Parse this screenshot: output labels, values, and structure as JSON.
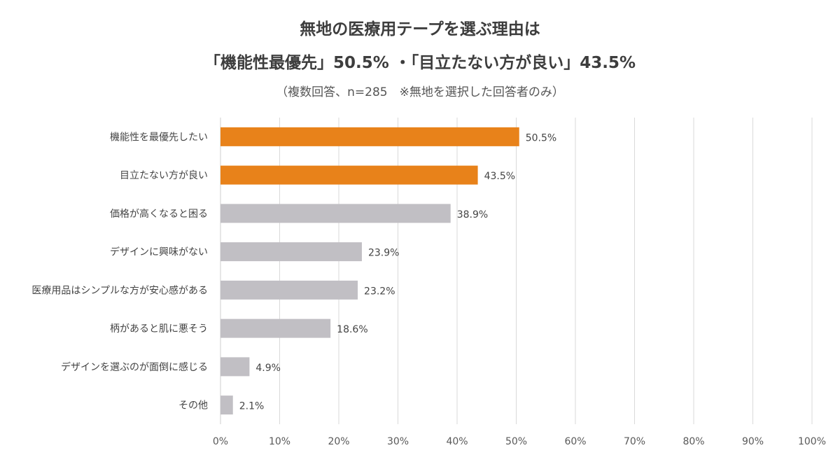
{
  "chart_data": {
    "type": "bar",
    "orientation": "horizontal",
    "title": "無地の医療用テープを選ぶ理由は",
    "subtitle_main": "「機能性最優先」50.5% ・「目立たない方が良い」43.5%",
    "subtitle_note": "（複数回答、n=285　※無地を選択した回答者のみ）",
    "categories": [
      "機能性を最優先したい",
      "目立たない方が良い",
      "価格が高くなると困る",
      "デザインに興味がない",
      "医療用品はシンプルな方が安心感がある",
      "柄があると肌に悪そう",
      "デザインを選ぶのが面倒に感じる",
      "その他"
    ],
    "values": [
      50.5,
      43.5,
      38.9,
      23.9,
      23.2,
      18.6,
      4.9,
      2.1
    ],
    "value_labels": [
      "50.5%",
      "43.5%",
      "38.9%",
      "23.9%",
      "23.2%",
      "18.6%",
      "4.9%",
      "2.1%"
    ],
    "highlighted": [
      true,
      true,
      false,
      false,
      false,
      false,
      false,
      false
    ],
    "xlim": [
      0,
      100
    ],
    "x_ticks": [
      0,
      10,
      20,
      30,
      40,
      50,
      60,
      70,
      80,
      90,
      100
    ],
    "x_tick_labels": [
      "0%",
      "10%",
      "20%",
      "30%",
      "40%",
      "50%",
      "60%",
      "70%",
      "80%",
      "90%",
      "100%"
    ],
    "grid": "vertical",
    "colors": {
      "highlight": "#e8821a",
      "default": "#c1bfc4",
      "grid": "#d9d9d9"
    }
  }
}
